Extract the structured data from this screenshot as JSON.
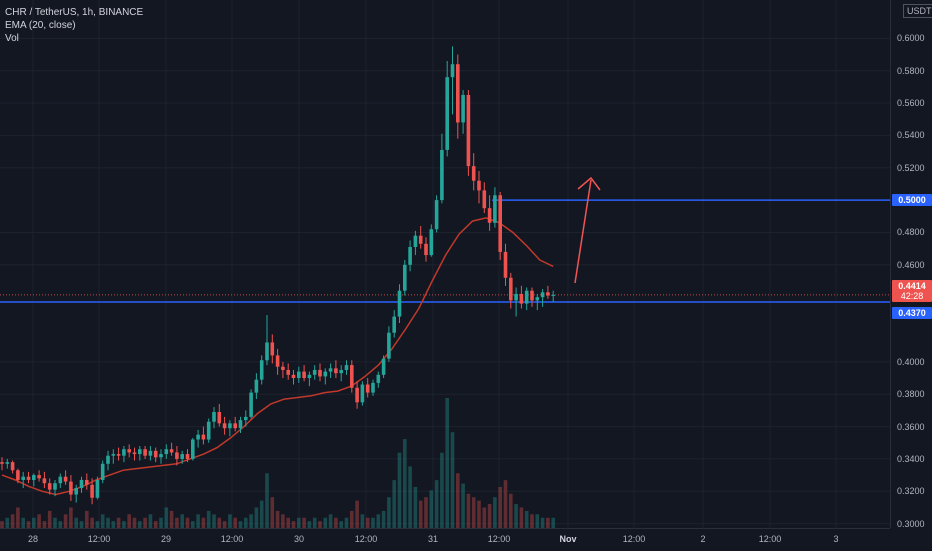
{
  "legend": {
    "symbol": "CHR / TetherUS, 1h, BINANCE",
    "ema": "EMA (20, close)",
    "vol": "Vol"
  },
  "price_axis": {
    "currency": "USDT",
    "ticks": [
      "0.6000",
      "0.5800",
      "0.5600",
      "0.5400",
      "0.5200",
      "0.4800",
      "0.4600",
      "0.4000",
      "0.3800",
      "0.3600",
      "0.3400",
      "0.3200",
      "0.3000"
    ],
    "tick_values": [
      0.6,
      0.58,
      0.56,
      0.54,
      0.52,
      0.48,
      0.46,
      0.4,
      0.38,
      0.36,
      0.34,
      0.32,
      0.3
    ],
    "labels": {
      "resistance": "0.5000",
      "current_price": "0.4414",
      "countdown": "42:28",
      "support": "0.4370"
    }
  },
  "time_axis": {
    "ticks": [
      "28",
      "12:00",
      "29",
      "12:00",
      "30",
      "12:00",
      "31",
      "12:00",
      "Nov",
      "12:00",
      "2",
      "12:00",
      "3"
    ]
  },
  "colors": {
    "background": "#131722",
    "up": "#26a69a",
    "down": "#ef5350",
    "ema": "#c0392b",
    "level_line": "#2962ff",
    "arrow": "#f05454"
  },
  "chart_data": {
    "type": "candlestick",
    "title": "CHR / TetherUS, 1h, BINANCE",
    "ylim": [
      0.295,
      0.63
    ],
    "levels": [
      0.5,
      0.437
    ],
    "last_price": 0.4414,
    "ema": [
      0.33,
      0.327,
      0.323,
      0.32,
      0.318,
      0.32,
      0.323,
      0.327,
      0.33,
      0.333,
      0.334,
      0.335,
      0.336,
      0.337,
      0.34,
      0.343,
      0.347,
      0.353,
      0.36,
      0.368,
      0.374,
      0.377,
      0.378,
      0.379,
      0.381,
      0.382,
      0.385,
      0.391,
      0.398,
      0.408,
      0.42,
      0.433,
      0.45,
      0.466,
      0.479,
      0.487,
      0.489,
      0.486,
      0.48,
      0.472,
      0.463,
      0.459
    ],
    "candles": [
      [
        0.338,
        0.341,
        0.333,
        0.337
      ],
      [
        0.337,
        0.34,
        0.334,
        0.338
      ],
      [
        0.338,
        0.339,
        0.331,
        0.333
      ],
      [
        0.333,
        0.334,
        0.325,
        0.327
      ],
      [
        0.327,
        0.332,
        0.322,
        0.329
      ],
      [
        0.329,
        0.332,
        0.325,
        0.327
      ],
      [
        0.327,
        0.331,
        0.323,
        0.33
      ],
      [
        0.33,
        0.333,
        0.326,
        0.328
      ],
      [
        0.328,
        0.332,
        0.322,
        0.325
      ],
      [
        0.325,
        0.328,
        0.318,
        0.321
      ],
      [
        0.321,
        0.327,
        0.317,
        0.325
      ],
      [
        0.325,
        0.331,
        0.322,
        0.329
      ],
      [
        0.329,
        0.333,
        0.324,
        0.326
      ],
      [
        0.326,
        0.33,
        0.314,
        0.318
      ],
      [
        0.318,
        0.324,
        0.313,
        0.322
      ],
      [
        0.322,
        0.329,
        0.319,
        0.327
      ],
      [
        0.327,
        0.331,
        0.321,
        0.324
      ],
      [
        0.324,
        0.328,
        0.312,
        0.316
      ],
      [
        0.316,
        0.329,
        0.315,
        0.327
      ],
      [
        0.327,
        0.339,
        0.325,
        0.337
      ],
      [
        0.337,
        0.345,
        0.333,
        0.342
      ],
      [
        0.342,
        0.346,
        0.337,
        0.343
      ],
      [
        0.343,
        0.347,
        0.339,
        0.342
      ],
      [
        0.342,
        0.348,
        0.338,
        0.346
      ],
      [
        0.346,
        0.349,
        0.341,
        0.344
      ],
      [
        0.344,
        0.347,
        0.339,
        0.343
      ],
      [
        0.343,
        0.348,
        0.339,
        0.346
      ],
      [
        0.346,
        0.348,
        0.34,
        0.342
      ],
      [
        0.342,
        0.348,
        0.339,
        0.345
      ],
      [
        0.345,
        0.347,
        0.338,
        0.341
      ],
      [
        0.341,
        0.346,
        0.337,
        0.343
      ],
      [
        0.343,
        0.349,
        0.34,
        0.346
      ],
      [
        0.346,
        0.35,
        0.342,
        0.344
      ],
      [
        0.344,
        0.348,
        0.336,
        0.34
      ],
      [
        0.34,
        0.345,
        0.337,
        0.343
      ],
      [
        0.343,
        0.346,
        0.338,
        0.34
      ],
      [
        0.34,
        0.353,
        0.339,
        0.352
      ],
      [
        0.352,
        0.358,
        0.347,
        0.355
      ],
      [
        0.355,
        0.36,
        0.349,
        0.352
      ],
      [
        0.352,
        0.365,
        0.35,
        0.363
      ],
      [
        0.363,
        0.372,
        0.359,
        0.369
      ],
      [
        0.369,
        0.374,
        0.36,
        0.362
      ],
      [
        0.362,
        0.366,
        0.355,
        0.359
      ],
      [
        0.359,
        0.364,
        0.354,
        0.362
      ],
      [
        0.362,
        0.366,
        0.357,
        0.359
      ],
      [
        0.359,
        0.366,
        0.356,
        0.364
      ],
      [
        0.364,
        0.37,
        0.36,
        0.366
      ],
      [
        0.366,
        0.383,
        0.365,
        0.381
      ],
      [
        0.381,
        0.393,
        0.377,
        0.389
      ],
      [
        0.389,
        0.404,
        0.386,
        0.401
      ],
      [
        0.401,
        0.429,
        0.398,
        0.412
      ],
      [
        0.412,
        0.417,
        0.399,
        0.404
      ],
      [
        0.404,
        0.408,
        0.392,
        0.397
      ],
      [
        0.397,
        0.4,
        0.39,
        0.395
      ],
      [
        0.395,
        0.399,
        0.389,
        0.392
      ],
      [
        0.392,
        0.395,
        0.386,
        0.39
      ],
      [
        0.39,
        0.397,
        0.387,
        0.394
      ],
      [
        0.394,
        0.398,
        0.388,
        0.39
      ],
      [
        0.39,
        0.394,
        0.385,
        0.392
      ],
      [
        0.392,
        0.398,
        0.389,
        0.395
      ],
      [
        0.395,
        0.399,
        0.388,
        0.391
      ],
      [
        0.391,
        0.396,
        0.386,
        0.394
      ],
      [
        0.394,
        0.399,
        0.39,
        0.396
      ],
      [
        0.396,
        0.401,
        0.39,
        0.393
      ],
      [
        0.393,
        0.398,
        0.388,
        0.395
      ],
      [
        0.395,
        0.401,
        0.392,
        0.398
      ],
      [
        0.398,
        0.401,
        0.381,
        0.384
      ],
      [
        0.384,
        0.388,
        0.371,
        0.375
      ],
      [
        0.375,
        0.388,
        0.373,
        0.386
      ],
      [
        0.386,
        0.39,
        0.378,
        0.381
      ],
      [
        0.381,
        0.389,
        0.379,
        0.387
      ],
      [
        0.387,
        0.394,
        0.384,
        0.392
      ],
      [
        0.392,
        0.404,
        0.39,
        0.402
      ],
      [
        0.402,
        0.422,
        0.4,
        0.418
      ],
      [
        0.418,
        0.432,
        0.415,
        0.428
      ],
      [
        0.428,
        0.448,
        0.424,
        0.444
      ],
      [
        0.444,
        0.463,
        0.441,
        0.46
      ],
      [
        0.46,
        0.475,
        0.456,
        0.471
      ],
      [
        0.471,
        0.481,
        0.466,
        0.478
      ],
      [
        0.478,
        0.484,
        0.47,
        0.473
      ],
      [
        0.473,
        0.477,
        0.462,
        0.466
      ],
      [
        0.466,
        0.485,
        0.465,
        0.482
      ],
      [
        0.482,
        0.503,
        0.48,
        0.5
      ],
      [
        0.5,
        0.541,
        0.498,
        0.531
      ],
      [
        0.531,
        0.586,
        0.527,
        0.576
      ],
      [
        0.576,
        0.595,
        0.553,
        0.584
      ],
      [
        0.584,
        0.59,
        0.538,
        0.548
      ],
      [
        0.548,
        0.568,
        0.541,
        0.565
      ],
      [
        0.565,
        0.568,
        0.515,
        0.521
      ],
      [
        0.521,
        0.529,
        0.506,
        0.512
      ],
      [
        0.512,
        0.518,
        0.498,
        0.506
      ],
      [
        0.506,
        0.511,
        0.492,
        0.495
      ],
      [
        0.495,
        0.503,
        0.481,
        0.486
      ],
      [
        0.486,
        0.508,
        0.483,
        0.503
      ],
      [
        0.503,
        0.505,
        0.463,
        0.468
      ],
      [
        0.468,
        0.473,
        0.447,
        0.452
      ],
      [
        0.452,
        0.455,
        0.433,
        0.438
      ],
      [
        0.438,
        0.446,
        0.428,
        0.442
      ],
      [
        0.442,
        0.447,
        0.433,
        0.436
      ],
      [
        0.436,
        0.446,
        0.432,
        0.444
      ],
      [
        0.444,
        0.446,
        0.434,
        0.438
      ],
      [
        0.438,
        0.442,
        0.432,
        0.44
      ],
      [
        0.44,
        0.445,
        0.434,
        0.443
      ],
      [
        0.443,
        0.447,
        0.439,
        0.441
      ],
      [
        0.441,
        0.444,
        0.437,
        0.4414
      ]
    ],
    "volume": [
      2,
      3,
      4,
      6,
      3,
      2,
      3,
      4,
      2,
      5,
      3,
      2,
      4,
      6,
      3,
      2,
      5,
      3,
      2,
      4,
      3,
      2,
      3,
      2,
      4,
      3,
      2,
      3,
      4,
      2,
      3,
      6,
      5,
      3,
      4,
      3,
      2,
      4,
      3,
      5,
      4,
      3,
      2,
      4,
      3,
      2,
      3,
      4,
      6,
      8,
      16,
      9,
      5,
      4,
      3,
      2,
      3,
      3,
      2,
      3,
      2,
      3,
      4,
      3,
      2,
      3,
      5,
      8,
      4,
      3,
      3,
      4,
      5,
      9,
      14,
      22,
      26,
      18,
      12,
      8,
      9,
      11,
      14,
      22,
      38,
      28,
      16,
      13,
      10,
      9,
      8,
      6,
      7,
      9,
      12,
      14,
      10,
      7,
      6,
      5,
      4,
      4,
      3,
      3,
      3
    ]
  }
}
